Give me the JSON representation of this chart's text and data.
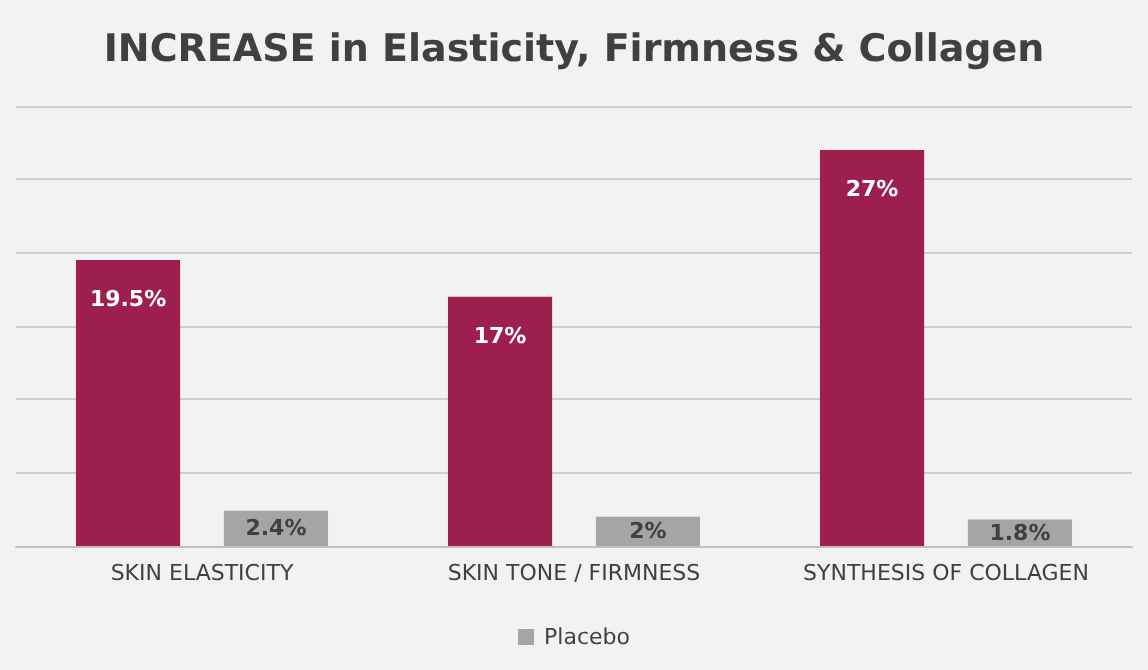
{
  "chart_data": {
    "type": "bar",
    "title": "INCREASE in Elasticity, Firmness & Collagen",
    "categories": [
      "SKIN ELASTICITY",
      "SKIN TONE / FIRMNESS",
      "SYNTHESIS OF COLLAGEN"
    ],
    "series": [
      {
        "color": "#9c1f4e",
        "values": [
          19.5,
          17,
          27
        ],
        "value_labels": [
          "19.5%",
          "17%",
          "27%"
        ]
      },
      {
        "name": "Placebo",
        "color": "#a5a5a5",
        "values": [
          2.4,
          2,
          1.8
        ],
        "value_labels": [
          "2.4%",
          "2%",
          "1.8%"
        ]
      }
    ],
    "ylim": [
      0,
      30
    ],
    "yticks": [
      {
        "value": 0,
        "label": null
      },
      {
        "value": 5,
        "label": null
      },
      {
        "value": 10,
        "label": null
      },
      {
        "value": 15,
        "label": null
      },
      {
        "value": 20,
        "label": null
      },
      {
        "value": 25,
        "label": null
      },
      {
        "value": 30,
        "label": null
      }
    ],
    "tick_labels": "x",
    "grid": "y",
    "legend": "bottom"
  }
}
